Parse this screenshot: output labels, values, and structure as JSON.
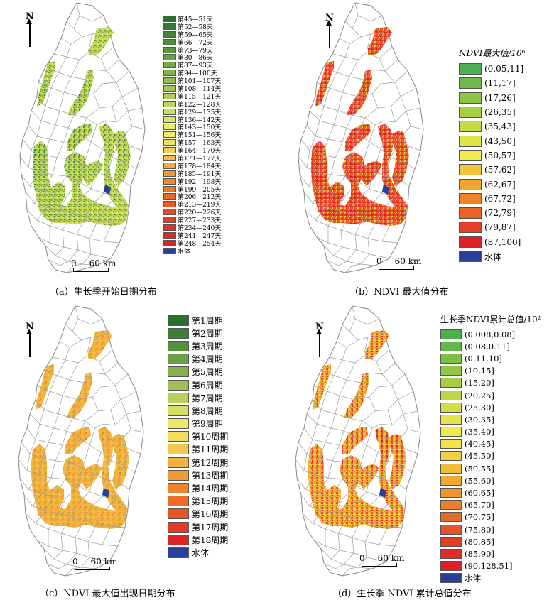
{
  "north_label": "N",
  "scale": {
    "zero": "0",
    "distance": "60 km"
  },
  "panels": [
    {
      "caption": "（a）生长季开始日期分布",
      "legend_title": "",
      "legend": [
        {
          "label": "第45—51天",
          "color": "#2a6e2f"
        },
        {
          "label": "第52—58天",
          "color": "#367a34"
        },
        {
          "label": "第59—65天",
          "color": "#448639"
        },
        {
          "label": "第66—72天",
          "color": "#4f8f3d"
        },
        {
          "label": "第73—79天",
          "color": "#5b9741"
        },
        {
          "label": "第80—86天",
          "color": "#67a045"
        },
        {
          "label": "第87—93天",
          "color": "#75a94a"
        },
        {
          "label": "第94—100天",
          "color": "#83b24f"
        },
        {
          "label": "第101—107天",
          "color": "#91bb53"
        },
        {
          "label": "第108—114天",
          "color": "#a0c458"
        },
        {
          "label": "第115—121天",
          "color": "#aecc5c"
        },
        {
          "label": "第122—128天",
          "color": "#bcd561"
        },
        {
          "label": "第129—135天",
          "color": "#cadd63"
        },
        {
          "label": "第136—142天",
          "color": "#d8e566"
        },
        {
          "label": "第143—150天",
          "color": "#e6ed68"
        },
        {
          "label": "第151—156天",
          "color": "#f2f06a"
        },
        {
          "label": "第157—163天",
          "color": "#f3df5e"
        },
        {
          "label": "第164—170天",
          "color": "#f3cf52"
        },
        {
          "label": "第171—177天",
          "color": "#f2bd46"
        },
        {
          "label": "第178—184天",
          "color": "#f0ab3c"
        },
        {
          "label": "第185—191天",
          "color": "#ee9a34"
        },
        {
          "label": "第192—198天",
          "color": "#ec8a2e"
        },
        {
          "label": "第199—205天",
          "color": "#ea7a2a"
        },
        {
          "label": "第206—212天",
          "color": "#e86a27"
        },
        {
          "label": "第213—219天",
          "color": "#e65a25"
        },
        {
          "label": "第220—226天",
          "color": "#e44c24"
        },
        {
          "label": "第227—233天",
          "color": "#e23f24"
        },
        {
          "label": "第234—240天",
          "color": "#e03324"
        },
        {
          "label": "第241—247天",
          "color": "#de2a24"
        },
        {
          "label": "第248—254天",
          "color": "#dc2224"
        },
        {
          "label": "水体",
          "color": "#2a3f9a"
        }
      ]
    },
    {
      "caption": "（b）NDVI 最大值分布",
      "legend_title": "NDVI最大值/10⁶",
      "legend": [
        {
          "label": "(0.05,11]",
          "color": "#4caf50"
        },
        {
          "label": "(11,17]",
          "color": "#6cba48"
        },
        {
          "label": "(17,26]",
          "color": "#8cc443"
        },
        {
          "label": "(26,35]",
          "color": "#a9cf42"
        },
        {
          "label": "(35,43]",
          "color": "#c5da45"
        },
        {
          "label": "(43,50]",
          "color": "#dfe44a"
        },
        {
          "label": "(50,57]",
          "color": "#f1ea4a"
        },
        {
          "label": "(57,62]",
          "color": "#f1c63c"
        },
        {
          "label": "(62,67]",
          "color": "#f0a52f"
        },
        {
          "label": "(67,72]",
          "color": "#ee8328"
        },
        {
          "label": "(72,79]",
          "color": "#ea6226"
        },
        {
          "label": "(79,87]",
          "color": "#e54126"
        },
        {
          "label": "(87,100]",
          "color": "#e02227"
        },
        {
          "label": "水体",
          "color": "#2b3f98"
        }
      ]
    },
    {
      "caption": "（c）NDVI 最大值出现日期分布",
      "legend_title": "",
      "legend": [
        {
          "label": "第1周期",
          "color": "#2a6e2f"
        },
        {
          "label": "第2周期",
          "color": "#3e7f36"
        },
        {
          "label": "第3周期",
          "color": "#55903d"
        },
        {
          "label": "第4周期",
          "color": "#6da045"
        },
        {
          "label": "第5周期",
          "color": "#86b04d"
        },
        {
          "label": "第6周期",
          "color": "#a0c056"
        },
        {
          "label": "第7周期",
          "color": "#bad05d"
        },
        {
          "label": "第8周期",
          "color": "#d4de63"
        },
        {
          "label": "第9周期",
          "color": "#ebea68"
        },
        {
          "label": "第10周期",
          "color": "#f3dd5c"
        },
        {
          "label": "第11周期",
          "color": "#f3c84e"
        },
        {
          "label": "第12周期",
          "color": "#f2b241"
        },
        {
          "label": "第13周期",
          "color": "#f09b36"
        },
        {
          "label": "第14周期",
          "color": "#ee842e"
        },
        {
          "label": "第15周期",
          "color": "#eb6d29"
        },
        {
          "label": "第16周期",
          "color": "#e75426"
        },
        {
          "label": "第17周期",
          "color": "#e33b25"
        },
        {
          "label": "第18周期",
          "color": "#df2424"
        },
        {
          "label": "水体",
          "color": "#2a3f9a"
        }
      ]
    },
    {
      "caption": "（d）生长季 NDVI 累计总值分布",
      "legend_title": "生长季NDVI累计总值/10²",
      "legend": [
        {
          "label": "(0.008,0.08]",
          "color": "#4caf50"
        },
        {
          "label": "(0.08,0.11]",
          "color": "#62b64b"
        },
        {
          "label": "(0.11,10]",
          "color": "#7abd47"
        },
        {
          "label": "(10,15]",
          "color": "#92c545"
        },
        {
          "label": "(15,20]",
          "color": "#a8cd44"
        },
        {
          "label": "(20,25]",
          "color": "#bed545"
        },
        {
          "label": "(25,30]",
          "color": "#d2dd48"
        },
        {
          "label": "(30,35]",
          "color": "#e3e44b"
        },
        {
          "label": "(35,40]",
          "color": "#efea4d"
        },
        {
          "label": "(40,45]",
          "color": "#f3e24a"
        },
        {
          "label": "(45,50]",
          "color": "#f2d041"
        },
        {
          "label": "(50,55]",
          "color": "#f1bd39"
        },
        {
          "label": "(55,60]",
          "color": "#f0a932"
        },
        {
          "label": "(60,65]",
          "color": "#ee952d"
        },
        {
          "label": "(65,70]",
          "color": "#ec7f29"
        },
        {
          "label": "(70,75]",
          "color": "#e96927"
        },
        {
          "label": "(75,80]",
          "color": "#e65326"
        },
        {
          "label": "(80,85]",
          "color": "#e33e26"
        },
        {
          "label": "(85,90]",
          "color": "#e02b26"
        },
        {
          "label": "(90,128.51]",
          "color": "#de1f26"
        },
        {
          "label": "水体",
          "color": "#2a3f9a"
        }
      ]
    }
  ]
}
